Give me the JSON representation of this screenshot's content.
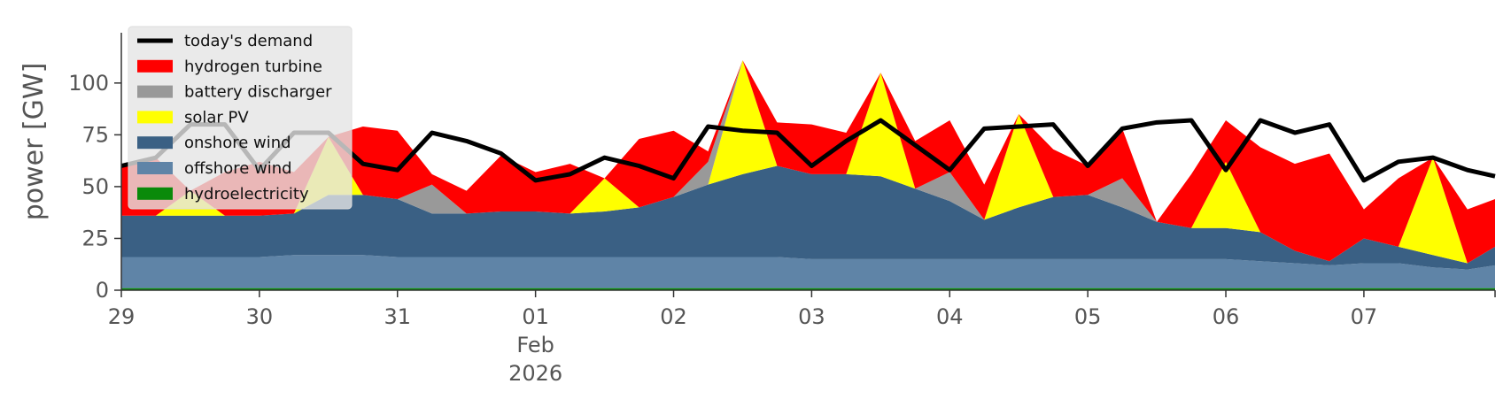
{
  "chart_data": {
    "type": "area",
    "title": "",
    "xlabel": "",
    "ylabel": "power [GW]",
    "xlim": [
      "2026-01-29T00:00",
      "2026-02-07T23:00"
    ],
    "ylim": [
      0,
      120
    ],
    "yticks": [
      0,
      25,
      50,
      75,
      100
    ],
    "xtick_labels": [
      "29",
      "30",
      "31",
      "01",
      "02",
      "03",
      "04",
      "05",
      "06",
      "07"
    ],
    "xtick_sublabels": [
      "Feb",
      "2026"
    ],
    "grid": false,
    "legend_position": "top-left",
    "series_colors": {
      "demand": "#000000",
      "hydrogen": "#ff0000",
      "battery": "#999999",
      "solar": "#ffff00",
      "onshore": "#3a6084",
      "offshore": "#5f84a7",
      "hydro": "#0a8a0a"
    },
    "legend": [
      {
        "key": "demand",
        "label": "today's demand",
        "kind": "line"
      },
      {
        "key": "hydrogen",
        "label": "hydrogen turbine",
        "kind": "patch"
      },
      {
        "key": "battery",
        "label": "battery discharger",
        "kind": "patch"
      },
      {
        "key": "solar",
        "label": "solar PV",
        "kind": "patch"
      },
      {
        "key": "onshore",
        "label": "onshore wind",
        "kind": "patch"
      },
      {
        "key": "offshore",
        "label": "offshore wind",
        "kind": "patch"
      },
      {
        "key": "hydro",
        "label": "hydroelectricity",
        "kind": "patch"
      }
    ],
    "x_days": [
      0,
      0.25,
      0.5,
      0.75,
      1,
      1.25,
      1.5,
      1.75,
      2,
      2.25,
      2.5,
      2.75,
      3,
      3.25,
      3.5,
      3.75,
      4,
      4.25,
      4.5,
      4.75,
      5,
      5.25,
      5.5,
      5.75,
      6,
      6.25,
      6.5,
      6.75,
      7,
      7.25,
      7.5,
      7.75,
      8,
      8.25,
      8.5,
      8.75,
      9,
      9.25,
      9.5,
      9.75,
      9.95
    ],
    "series": [
      {
        "key": "hydro",
        "name": "hydroelectricity",
        "values": [
          1,
          1,
          1,
          1,
          1,
          1,
          1,
          1,
          1,
          1,
          1,
          1,
          1,
          1,
          1,
          1,
          1,
          1,
          1,
          1,
          1,
          1,
          1,
          1,
          1,
          1,
          1,
          1,
          1,
          1,
          1,
          1,
          1,
          1,
          1,
          1,
          1,
          1,
          1,
          1,
          1
        ]
      },
      {
        "key": "offshore",
        "name": "offshore wind",
        "values": [
          15,
          15,
          15,
          15,
          15,
          16,
          16,
          16,
          15,
          15,
          15,
          15,
          15,
          15,
          15,
          15,
          15,
          15,
          15,
          15,
          14,
          14,
          14,
          14,
          14,
          14,
          14,
          14,
          14,
          14,
          14,
          14,
          14,
          13,
          12,
          11,
          12,
          12,
          10,
          9,
          11
        ]
      },
      {
        "key": "onshore",
        "name": "onshore wind",
        "values": [
          20,
          20,
          20,
          20,
          20,
          20,
          29,
          29,
          28,
          21,
          21,
          22,
          22,
          21,
          22,
          24,
          29,
          35,
          40,
          44,
          41,
          41,
          40,
          34,
          28,
          19,
          25,
          30,
          31,
          25,
          18,
          15,
          15,
          14,
          6,
          2,
          12,
          8,
          6,
          3,
          9
        ]
      },
      {
        "key": "solar",
        "name": "solar PV",
        "values": [
          0,
          0,
          12,
          0,
          0,
          0,
          28,
          0,
          0,
          0,
          0,
          0,
          0,
          0,
          16,
          0,
          0,
          0,
          55,
          0,
          0,
          0,
          50,
          0,
          0,
          0,
          45,
          0,
          0,
          0,
          0,
          0,
          32,
          0,
          0,
          0,
          0,
          0,
          47,
          0,
          0
        ]
      },
      {
        "key": "battery",
        "name": "battery discharger",
        "values": [
          0,
          0,
          0,
          0,
          0,
          0,
          0,
          0,
          0,
          14,
          0,
          0,
          0,
          0,
          0,
          0,
          0,
          11,
          0,
          0,
          0,
          0,
          0,
          0,
          14,
          0,
          0,
          0,
          0,
          14,
          0,
          0,
          0,
          0,
          0,
          0,
          0,
          0,
          0,
          0,
          0
        ]
      },
      {
        "key": "hydrogen",
        "name": "hydrogen turbine",
        "values": [
          24,
          28,
          0,
          21,
          26,
          20,
          0,
          33,
          33,
          5,
          11,
          27,
          19,
          24,
          0,
          33,
          32,
          5,
          0,
          21,
          24,
          20,
          0,
          23,
          25,
          17,
          0,
          23,
          14,
          24,
          0,
          26,
          20,
          41,
          42,
          52,
          14,
          33,
          0,
          26,
          23
        ]
      }
    ],
    "demand": {
      "name": "today's demand",
      "values": [
        60,
        64,
        80,
        80,
        58,
        76,
        76,
        61,
        58,
        76,
        72,
        66,
        53,
        56,
        64,
        60,
        54,
        79,
        77,
        76,
        60,
        72,
        82,
        70,
        58,
        78,
        79,
        80,
        60,
        78,
        81,
        82,
        58,
        82,
        76,
        80,
        53,
        62,
        64,
        58,
        55
      ]
    }
  }
}
